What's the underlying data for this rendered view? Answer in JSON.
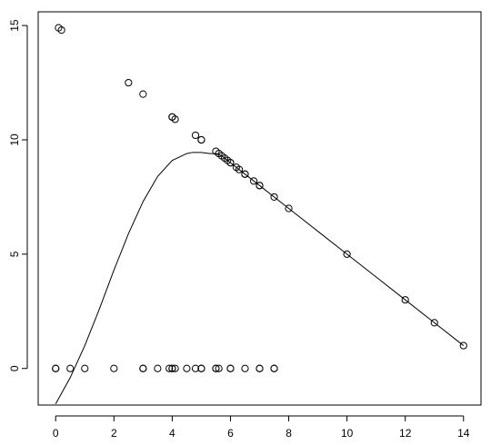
{
  "chart_data": {
    "type": "scatter",
    "title": "",
    "xlabel": "",
    "ylabel": "",
    "xlim": [
      -0.6,
      14.6
    ],
    "ylim": [
      -1.6,
      15.6
    ],
    "x_ticks": [
      0,
      2,
      4,
      6,
      8,
      10,
      12,
      14
    ],
    "y_ticks": [
      0,
      5,
      10,
      15
    ],
    "grid": false,
    "series": [
      {
        "type": "scatter",
        "x": [
          0.1,
          0.2,
          2.5,
          3,
          4,
          4,
          4.1,
          4.8,
          5,
          5,
          5.5,
          5.6,
          5.7,
          5.8,
          5.9,
          6,
          6,
          6.2,
          6.3,
          6.5,
          6.5,
          6.8,
          7,
          7,
          7.5,
          8,
          10,
          12,
          13,
          14,
          0,
          0,
          0.5,
          1,
          2,
          3,
          3,
          3.5,
          3.9,
          4,
          4,
          4.1,
          4.5,
          4.8,
          5,
          5,
          5.5,
          5.5,
          5.6,
          6,
          6,
          6.5,
          7,
          7,
          7.5,
          7.5
        ],
        "y": [
          14.9,
          14.8,
          12.5,
          12,
          11,
          11,
          10.9,
          10.2,
          10,
          10,
          9.5,
          9.4,
          9.3,
          9.2,
          9.1,
          9,
          9,
          8.8,
          8.7,
          8.5,
          8.5,
          8.2,
          8,
          8,
          7.5,
          7,
          5,
          3,
          2,
          1,
          0,
          0,
          0,
          0,
          0,
          0,
          0,
          0,
          0,
          0,
          0,
          0,
          0,
          0,
          0,
          0,
          0,
          0,
          0,
          0,
          0,
          0,
          0,
          0,
          0,
          0
        ]
      },
      {
        "type": "line",
        "x": [
          0,
          0.5,
          1,
          1.5,
          2,
          2.5,
          3,
          3.5,
          4,
          4.5,
          4.7,
          5,
          5.3,
          5.5,
          5.7,
          6,
          7,
          8,
          9,
          10,
          11,
          12,
          13,
          14
        ],
        "y": [
          -1.55,
          -0.4,
          1.0,
          2.6,
          4.3,
          5.9,
          7.3,
          8.4,
          9.1,
          9.4,
          9.45,
          9.45,
          9.4,
          9.4,
          9.3,
          9.0,
          8.0,
          7.0,
          6.0,
          5.0,
          4.0,
          3.0,
          2.0,
          1.0
        ]
      }
    ]
  }
}
